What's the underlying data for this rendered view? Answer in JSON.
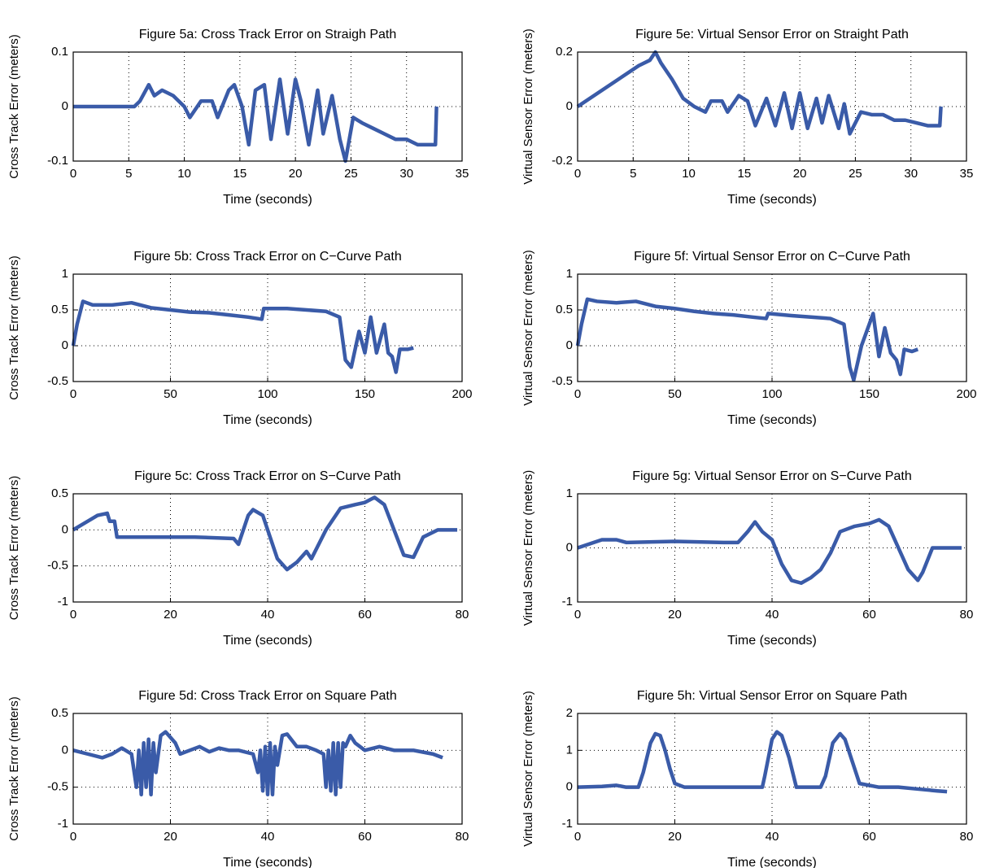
{
  "chart_data": [
    {
      "type": "line",
      "title": "Figure 5a: Cross Track Error on Straigh Path",
      "xlabel": "Time (seconds)",
      "ylabel": "Cross Track Error (meters)",
      "grid": true,
      "color": "#3a5ba8",
      "xlim": [
        0,
        35
      ],
      "xticks": [
        0,
        5,
        10,
        15,
        20,
        25,
        30,
        35
      ],
      "ylim": [
        -0.1,
        0.1
      ],
      "yticks": [
        -0.1,
        0,
        0.1
      ],
      "x": [
        0,
        5.5,
        6,
        6.8,
        7.3,
        8,
        9,
        10,
        10.5,
        11.5,
        12.5,
        13,
        14,
        14.5,
        15.2,
        15.8,
        16.4,
        17.2,
        17.8,
        18.6,
        19.3,
        20,
        20.5,
        21.2,
        22,
        22.5,
        23.3,
        24,
        24.5,
        25.2,
        26,
        27,
        28,
        29,
        30,
        31,
        32,
        32.6,
        32.7
      ],
      "values": [
        0,
        0,
        0.01,
        0.04,
        0.02,
        0.03,
        0.02,
        0,
        -0.02,
        0.01,
        0.01,
        -0.02,
        0.03,
        0.04,
        0,
        -0.07,
        0.03,
        0.04,
        -0.06,
        0.05,
        -0.05,
        0.05,
        0.01,
        -0.07,
        0.03,
        -0.05,
        0.02,
        -0.06,
        -0.1,
        -0.02,
        -0.03,
        -0.04,
        -0.05,
        -0.06,
        -0.06,
        -0.07,
        -0.07,
        -0.07,
        0
      ]
    },
    {
      "type": "line",
      "title": "Figure 5b: Cross Track Error on C−Curve Path",
      "xlabel": "Time (seconds)",
      "ylabel": "Cross Track Error (meters)",
      "grid": true,
      "color": "#3a5ba8",
      "xlim": [
        0,
        200
      ],
      "xticks": [
        0,
        50,
        100,
        150,
        200
      ],
      "ylim": [
        -0.5,
        1
      ],
      "yticks": [
        -0.5,
        0,
        0.5,
        1
      ],
      "x": [
        0,
        2,
        5,
        10,
        20,
        30,
        40,
        50,
        60,
        70,
        80,
        90,
        97,
        98,
        110,
        120,
        130,
        137,
        140,
        143,
        147,
        150,
        153,
        156,
        160,
        162,
        164,
        166,
        168,
        172,
        175
      ],
      "values": [
        0,
        0.3,
        0.62,
        0.57,
        0.57,
        0.6,
        0.53,
        0.5,
        0.47,
        0.46,
        0.43,
        0.4,
        0.37,
        0.52,
        0.52,
        0.5,
        0.48,
        0.4,
        -0.2,
        -0.3,
        0.2,
        -0.1,
        0.4,
        -0.1,
        0.3,
        -0.1,
        -0.15,
        -0.37,
        -0.05,
        -0.05,
        -0.03
      ]
    },
    {
      "type": "line",
      "title": "Figure 5c: Cross Track Error on S−Curve Path",
      "xlabel": "Time (seconds)",
      "ylabel": "Cross Track Error (meters)",
      "grid": true,
      "color": "#3a5ba8",
      "xlim": [
        0,
        80
      ],
      "xticks": [
        0,
        20,
        40,
        60,
        80
      ],
      "ylim": [
        -1,
        0.5
      ],
      "yticks": [
        -1,
        -0.5,
        0,
        0.5
      ],
      "x": [
        0,
        5,
        7,
        7.5,
        8.5,
        9,
        15,
        25,
        33,
        34,
        35,
        36,
        37,
        39,
        40,
        42,
        44,
        46,
        48,
        49,
        52,
        55,
        58,
        60,
        62,
        64,
        66,
        68,
        70,
        72,
        75,
        79
      ],
      "values": [
        0,
        0.2,
        0.23,
        0.12,
        0.12,
        -0.1,
        -0.1,
        -0.1,
        -0.12,
        -0.2,
        0,
        0.2,
        0.28,
        0.2,
        0,
        -0.4,
        -0.55,
        -0.45,
        -0.3,
        -0.4,
        0,
        0.3,
        0.35,
        0.38,
        0.45,
        0.35,
        0,
        -0.35,
        -0.38,
        -0.1,
        0,
        0
      ]
    },
    {
      "type": "line",
      "title": "Figure 5d: Cross Track Error on Square Path",
      "xlabel": "Time (seconds)",
      "ylabel": "Cross Track Error (meters)",
      "grid": true,
      "color": "#3a5ba8",
      "xlim": [
        0,
        80
      ],
      "xticks": [
        0,
        20,
        40,
        60,
        80
      ],
      "ylim": [
        -1,
        0.5
      ],
      "yticks": [
        -1,
        -0.5,
        0,
        0.5
      ],
      "x": [
        0,
        3,
        6,
        8,
        10,
        12,
        13,
        13.5,
        14,
        14.5,
        15,
        15.5,
        16,
        16.5,
        17,
        18,
        19,
        21,
        22,
        24,
        26,
        28,
        30,
        32,
        34,
        37,
        38,
        38.5,
        39,
        39.5,
        40,
        40.5,
        41,
        41.5,
        42,
        43,
        44,
        46,
        48,
        50,
        51.5,
        52,
        52.5,
        53,
        53.5,
        54,
        54.5,
        55,
        55.5,
        56,
        57,
        58,
        60,
        63,
        66,
        70,
        74,
        76
      ],
      "values": [
        0,
        -0.05,
        -0.1,
        -0.05,
        0.03,
        -0.05,
        -0.5,
        0,
        -0.6,
        0.1,
        -0.5,
        0.15,
        -0.6,
        0.1,
        -0.3,
        0.2,
        0.25,
        0.1,
        -0.05,
        0,
        0.05,
        -0.02,
        0.03,
        0,
        0,
        -0.05,
        -0.3,
        0,
        -0.55,
        0.05,
        -0.6,
        0.1,
        -0.6,
        0.05,
        -0.2,
        0.2,
        0.22,
        0.05,
        0.05,
        0,
        -0.05,
        -0.5,
        0,
        -0.55,
        0.1,
        -0.6,
        0.1,
        -0.5,
        0.1,
        0.05,
        0.2,
        0.1,
        0,
        0.05,
        0,
        0,
        -0.05,
        -0.1
      ]
    },
    {
      "type": "line",
      "title": "Figure 5e: Virtual Sensor Error on Straight Path",
      "xlabel": "Time (seconds)",
      "ylabel": "Virtual Sensor Error (meters)",
      "grid": true,
      "color": "#3a5ba8",
      "xlim": [
        0,
        35
      ],
      "xticks": [
        0,
        5,
        10,
        15,
        20,
        25,
        30,
        35
      ],
      "ylim": [
        -0.2,
        0.2
      ],
      "yticks": [
        -0.2,
        0,
        0.2
      ],
      "x": [
        0,
        5.5,
        6.5,
        7,
        7.5,
        8.5,
        9.5,
        10.5,
        11.5,
        12,
        13,
        13.5,
        14.5,
        15.3,
        16,
        17,
        17.8,
        18.6,
        19.3,
        20,
        20.7,
        21.5,
        22,
        22.6,
        23.5,
        24,
        24.5,
        25.5,
        26.5,
        27.5,
        28.5,
        29.5,
        30.5,
        31.5,
        32.6,
        32.7
      ],
      "values": [
        0,
        0.15,
        0.17,
        0.2,
        0.16,
        0.1,
        0.03,
        0,
        -0.02,
        0.02,
        0.02,
        -0.02,
        0.04,
        0.02,
        -0.07,
        0.03,
        -0.07,
        0.05,
        -0.08,
        0.05,
        -0.08,
        0.03,
        -0.06,
        0.04,
        -0.08,
        0.01,
        -0.1,
        -0.02,
        -0.03,
        -0.03,
        -0.05,
        -0.05,
        -0.06,
        -0.07,
        -0.07,
        0
      ]
    },
    {
      "type": "line",
      "title": "Figure 5f: Virtual Sensor Error on C−Curve Path",
      "xlabel": "Time (seconds)",
      "ylabel": "Virtual Sensor Error (meters)",
      "grid": true,
      "color": "#3a5ba8",
      "xlim": [
        0,
        200
      ],
      "xticks": [
        0,
        50,
        100,
        150,
        200
      ],
      "ylim": [
        -0.5,
        1
      ],
      "yticks": [
        -0.5,
        0,
        0.5,
        1
      ],
      "x": [
        0,
        2,
        5,
        10,
        20,
        30,
        40,
        50,
        60,
        70,
        80,
        90,
        97,
        98,
        110,
        120,
        130,
        137,
        140,
        142,
        146,
        150,
        152,
        155,
        158,
        161,
        164,
        166,
        168,
        172,
        175
      ],
      "values": [
        0,
        0.3,
        0.65,
        0.62,
        0.6,
        0.62,
        0.55,
        0.52,
        0.48,
        0.45,
        0.43,
        0.4,
        0.38,
        0.45,
        0.42,
        0.4,
        0.38,
        0.3,
        -0.3,
        -0.48,
        0,
        0.3,
        0.45,
        -0.15,
        0.25,
        -0.1,
        -0.2,
        -0.4,
        -0.05,
        -0.08,
        -0.05
      ]
    },
    {
      "type": "line",
      "title": "Figure 5g: Virtual Sensor Error on S−Curve Path",
      "xlabel": "Time (seconds)",
      "ylabel": "Virtual Sensor Error (meters)",
      "grid": true,
      "color": "#3a5ba8",
      "xlim": [
        0,
        80
      ],
      "xticks": [
        0,
        20,
        40,
        60,
        80
      ],
      "ylim": [
        -1,
        1
      ],
      "yticks": [
        -1,
        0,
        1
      ],
      "x": [
        0,
        5,
        8,
        10,
        20,
        30,
        33,
        35,
        36.5,
        38,
        40,
        42,
        44,
        46,
        48,
        50,
        52,
        54,
        57,
        60,
        62,
        64,
        66,
        68,
        70,
        71,
        73,
        76,
        79
      ],
      "values": [
        0,
        0.15,
        0.15,
        0.1,
        0.12,
        0.1,
        0.1,
        0.3,
        0.48,
        0.3,
        0.15,
        -0.3,
        -0.6,
        -0.65,
        -0.55,
        -0.4,
        -0.1,
        0.3,
        0.4,
        0.45,
        0.52,
        0.4,
        0,
        -0.4,
        -0.6,
        -0.45,
        0,
        0,
        0
      ]
    },
    {
      "type": "line",
      "title": "Figure 5h: Virtual Sensor Error on Square Path",
      "xlabel": "Time (seconds)",
      "ylabel": "Virtual Sensor Error (meters)",
      "grid": true,
      "color": "#3a5ba8",
      "xlim": [
        0,
        80
      ],
      "xticks": [
        0,
        20,
        40,
        60,
        80
      ],
      "ylim": [
        -1,
        2
      ],
      "yticks": [
        -1,
        0,
        1,
        2
      ],
      "x": [
        0,
        5,
        8,
        10,
        12.5,
        13.5,
        15,
        16,
        17,
        18,
        19,
        20,
        22,
        25,
        30,
        35,
        38,
        38.5,
        40,
        41,
        42,
        43.5,
        45,
        48,
        50,
        51,
        52.5,
        54,
        55,
        56.5,
        58,
        62,
        66,
        70,
        74,
        76
      ],
      "values": [
        0,
        0.02,
        0.05,
        0,
        0,
        0.4,
        1.2,
        1.45,
        1.4,
        1,
        0.5,
        0.1,
        0,
        0,
        0,
        0,
        0,
        0.3,
        1.3,
        1.5,
        1.4,
        0.8,
        0,
        0,
        0,
        0.3,
        1.2,
        1.45,
        1.3,
        0.7,
        0.1,
        0,
        0,
        -0.05,
        -0.1,
        -0.12
      ]
    }
  ]
}
